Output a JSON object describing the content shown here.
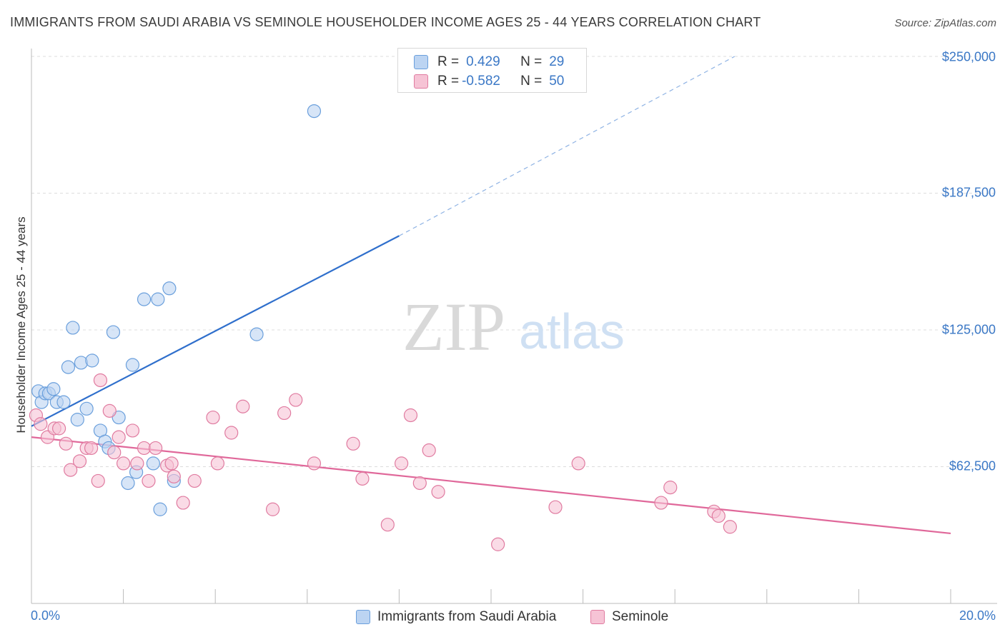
{
  "title": "IMMIGRANTS FROM SAUDI ARABIA VS SEMINOLE HOUSEHOLDER INCOME AGES 25 - 44 YEARS CORRELATION CHART",
  "source": "Source: ZipAtlas.com",
  "watermark": {
    "zip": "ZIP",
    "atlas": "atlas"
  },
  "legend": [
    {
      "r_label": "R =",
      "r_value": "0.429",
      "n_label": "N =",
      "n_value": "29"
    },
    {
      "r_label": "R =",
      "r_value": "-0.582",
      "n_label": "N =",
      "n_value": "50"
    }
  ],
  "chart_data": {
    "type": "scatter",
    "ylabel": "Householder Income Ages 25 - 44 years",
    "xlim": [
      0,
      20
    ],
    "ylim": [
      0,
      262500
    ],
    "x_tick_labels": [
      "0.0%",
      "20.0%"
    ],
    "y_ticks": [
      62500,
      125000,
      187500,
      250000
    ],
    "y_tick_labels": [
      "$62,500",
      "$125,000",
      "$187,500",
      "$250,000"
    ],
    "series": [
      {
        "name": "Immigrants from Saudi Arabia",
        "color": "#6a9fdc",
        "fill": "#bcd4f2",
        "points": [
          [
            0.15,
            97000
          ],
          [
            0.22,
            92000
          ],
          [
            0.3,
            96000
          ],
          [
            0.38,
            96000
          ],
          [
            0.48,
            98000
          ],
          [
            0.55,
            92000
          ],
          [
            0.7,
            92000
          ],
          [
            0.8,
            108000
          ],
          [
            0.9,
            126000
          ],
          [
            1.0,
            84000
          ],
          [
            1.08,
            110000
          ],
          [
            1.2,
            89000
          ],
          [
            1.32,
            111000
          ],
          [
            1.5,
            79000
          ],
          [
            1.6,
            74000
          ],
          [
            1.68,
            71000
          ],
          [
            1.78,
            124000
          ],
          [
            1.9,
            85000
          ],
          [
            2.1,
            55000
          ],
          [
            2.2,
            109000
          ],
          [
            2.28,
            60000
          ],
          [
            2.45,
            139000
          ],
          [
            2.65,
            64000
          ],
          [
            2.75,
            139000
          ],
          [
            2.8,
            43000
          ],
          [
            3.0,
            144000
          ],
          [
            3.1,
            56000
          ],
          [
            4.9,
            123000
          ],
          [
            6.15,
            225000
          ]
        ],
        "trend": {
          "x": [
            0,
            8.0
          ],
          "y": [
            81000,
            168000
          ],
          "dashed_to": [
            15.3,
            250000
          ]
        }
      },
      {
        "name": "Seminole",
        "color": "#e07ba0",
        "fill": "#f6c3d5",
        "points": [
          [
            0.1,
            86000
          ],
          [
            0.2,
            82000
          ],
          [
            0.35,
            76000
          ],
          [
            0.5,
            80000
          ],
          [
            0.6,
            80000
          ],
          [
            0.75,
            73000
          ],
          [
            0.85,
            61000
          ],
          [
            1.05,
            65000
          ],
          [
            1.2,
            71000
          ],
          [
            1.3,
            71000
          ],
          [
            1.45,
            56000
          ],
          [
            1.5,
            102000
          ],
          [
            1.7,
            88000
          ],
          [
            1.8,
            69000
          ],
          [
            1.9,
            76000
          ],
          [
            2.0,
            64000
          ],
          [
            2.2,
            79000
          ],
          [
            2.3,
            64000
          ],
          [
            2.45,
            71000
          ],
          [
            2.55,
            56000
          ],
          [
            2.7,
            71000
          ],
          [
            2.95,
            63000
          ],
          [
            3.05,
            64000
          ],
          [
            3.1,
            58000
          ],
          [
            3.3,
            46000
          ],
          [
            3.55,
            56000
          ],
          [
            3.95,
            85000
          ],
          [
            4.05,
            64000
          ],
          [
            4.35,
            78000
          ],
          [
            4.6,
            90000
          ],
          [
            5.25,
            43000
          ],
          [
            5.5,
            87000
          ],
          [
            5.75,
            93000
          ],
          [
            6.15,
            64000
          ],
          [
            7.0,
            73000
          ],
          [
            7.2,
            57000
          ],
          [
            7.75,
            36000
          ],
          [
            8.05,
            64000
          ],
          [
            8.25,
            86000
          ],
          [
            8.45,
            55000
          ],
          [
            8.65,
            70000
          ],
          [
            8.85,
            51000
          ],
          [
            10.15,
            27000
          ],
          [
            11.4,
            44000
          ],
          [
            11.9,
            64000
          ],
          [
            13.7,
            46000
          ],
          [
            13.9,
            53000
          ],
          [
            14.85,
            42000
          ],
          [
            14.95,
            40000
          ],
          [
            15.2,
            35000
          ]
        ],
        "trend": {
          "x": [
            0,
            20
          ],
          "y": [
            76000,
            32000
          ]
        }
      }
    ]
  }
}
